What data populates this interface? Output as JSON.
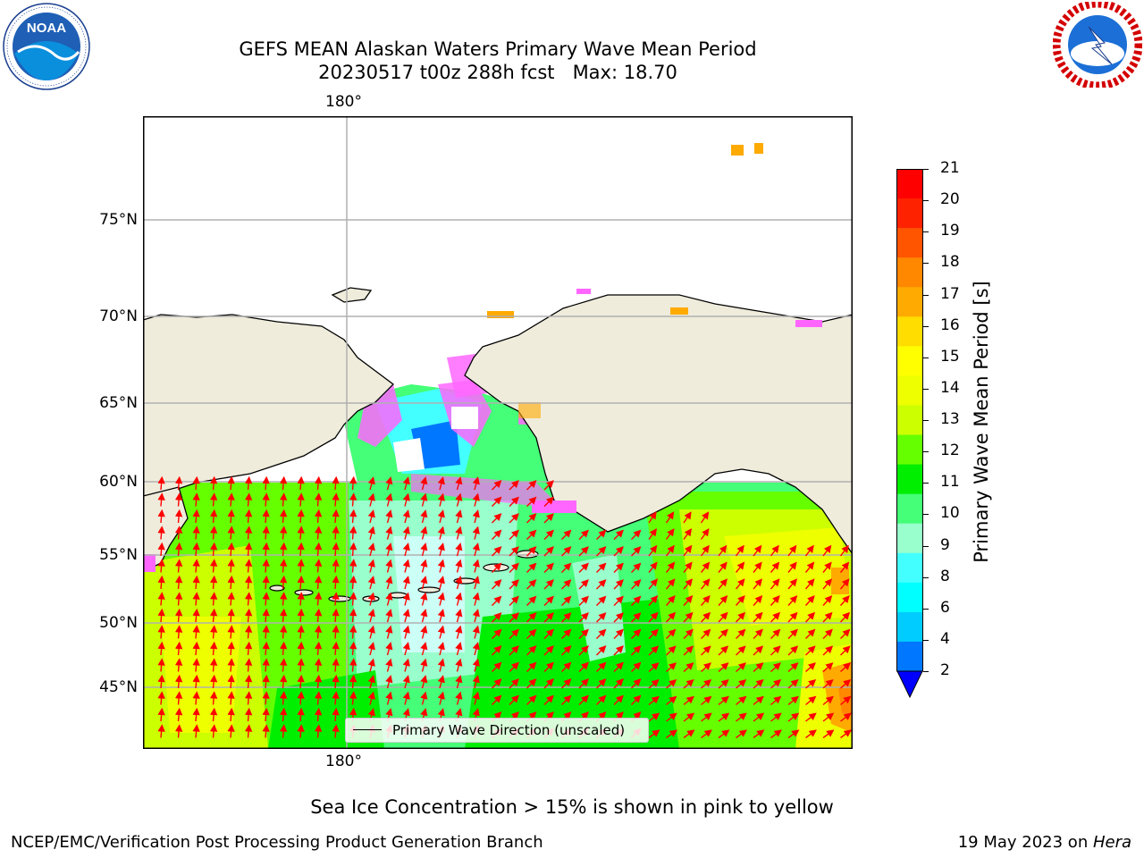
{
  "header": {
    "title_line1": "GEFS MEAN Alaskan Waters Primary Wave Mean Period",
    "title_line2": "20230517 t00z 288h fcst   Max: 18.70"
  },
  "logos": {
    "left": {
      "name": "NOAA",
      "ring_text": "NATIONAL OCEANIC AND ATMOSPHERIC ADMINISTRATION",
      "bottom_text": "U.S. DEPARTMENT OF COMMERCE"
    },
    "right": {
      "name": "NATIONAL WEATHER SERVICE"
    }
  },
  "map": {
    "lat_labels": [
      "75°N",
      "70°N",
      "65°N",
      "60°N",
      "55°N",
      "50°N",
      "45°N"
    ],
    "lon_label_top": "180°",
    "lon_label_bottom": "180°",
    "legend_label": "Primary Wave Direction (unscaled)",
    "land_color": "#efecdc",
    "arrow_color": "#ff0000",
    "coast_color": "#000000"
  },
  "colorbar": {
    "label": "Primary Wave Mean Period [s]",
    "ticks": [
      "21",
      "20",
      "19",
      "18",
      "17",
      "16",
      "15",
      "14",
      "13",
      "12",
      "11",
      "10",
      "9",
      "8",
      "6",
      "4",
      "2"
    ],
    "colors_top_to_bottom": [
      "#ff0000",
      "#ff2200",
      "#ff5500",
      "#ff8800",
      "#ffaa00",
      "#ffdd00",
      "#ffff00",
      "#eeff00",
      "#ccff00",
      "#66ff00",
      "#00ee00",
      "#44ff77",
      "#99ffcc",
      "#44ffff",
      "#00ffff",
      "#00ccff",
      "#0077ff"
    ],
    "extend_color": "#0000ff"
  },
  "footer": {
    "ice_note": "Sea Ice Concentration > 15% is shown in pink to yellow",
    "org": "NCEP/EMC/Verification Post Processing Product Generation Branch",
    "date": "19 May 2023 on ",
    "machine": "Hera"
  }
}
